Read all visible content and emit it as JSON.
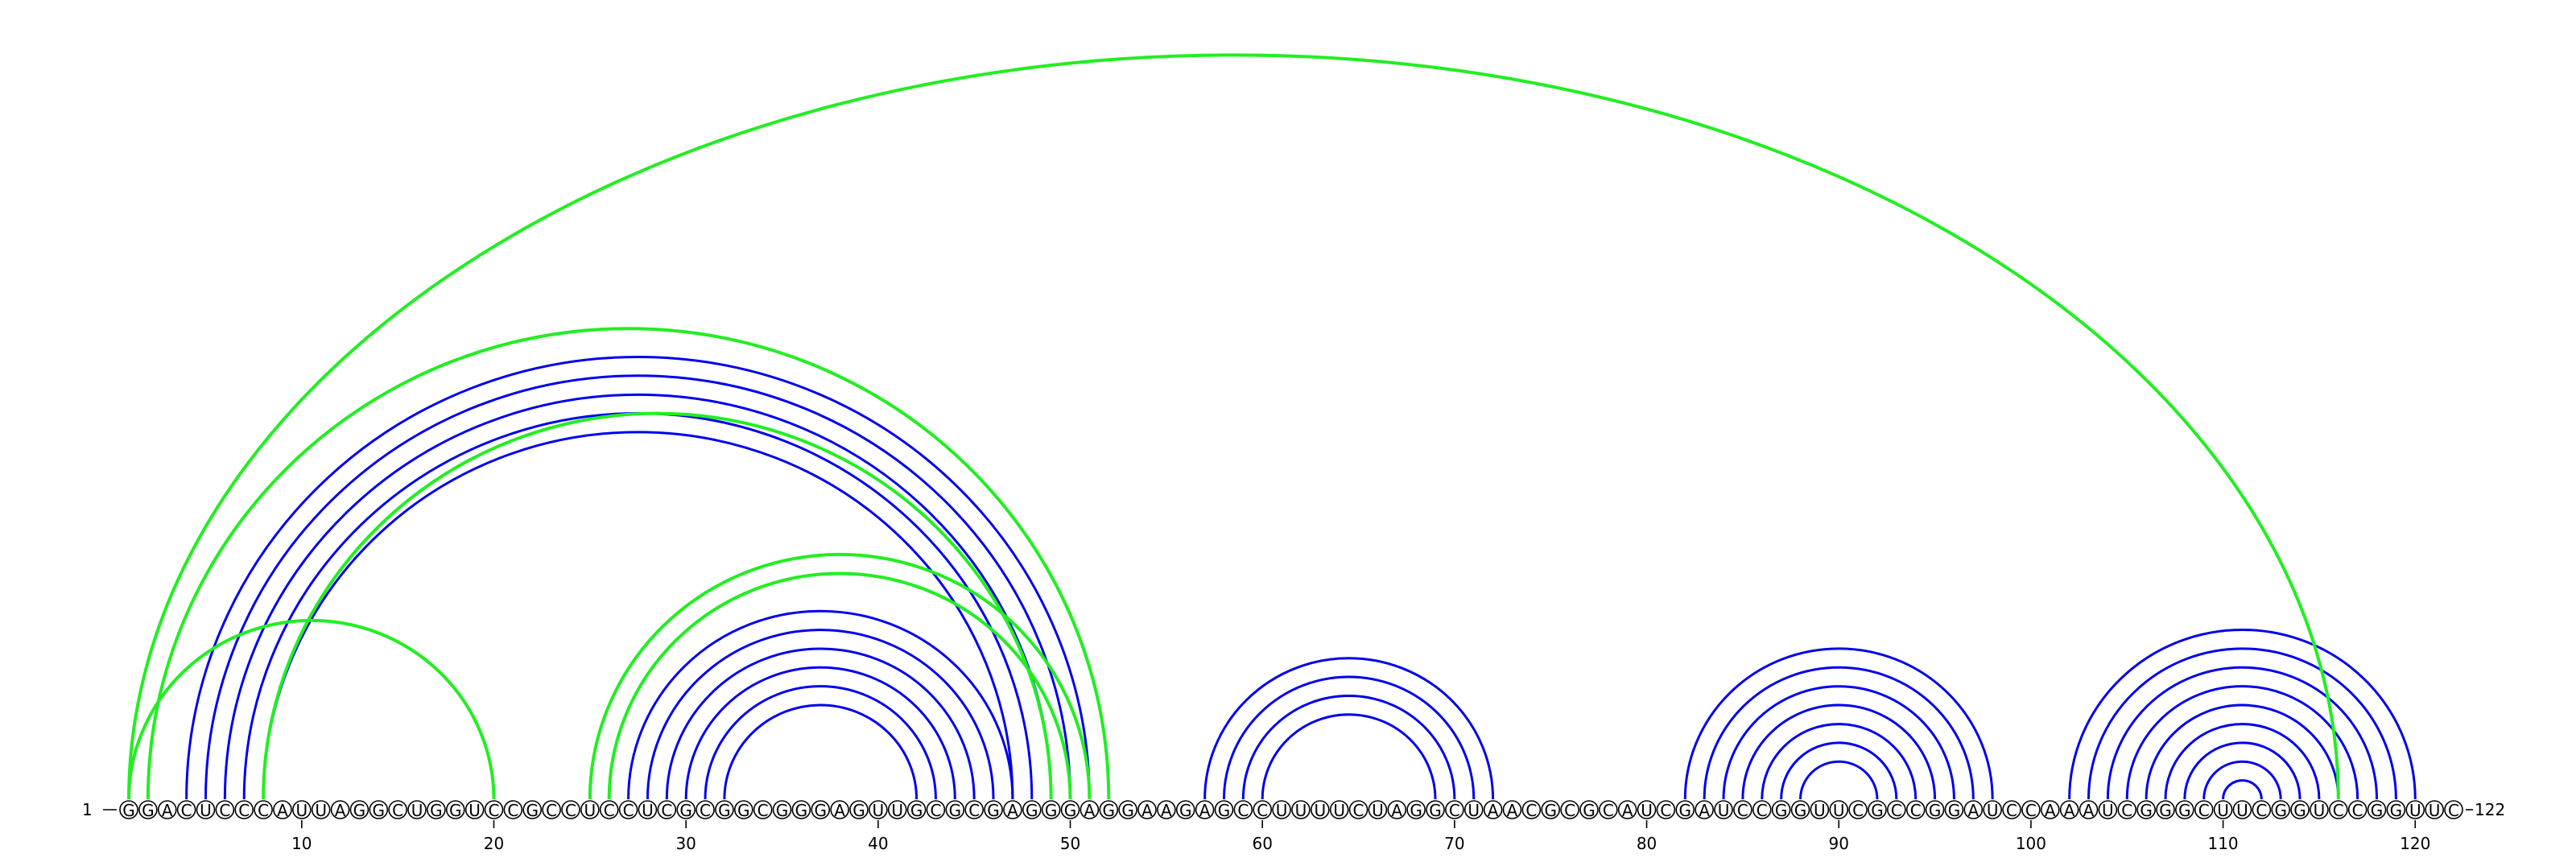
{
  "colors": {
    "blue": "#0000ee",
    "green": "#22ee22",
    "background": "#ffffff",
    "nucleotide_stroke": "#000000"
  },
  "labels": {
    "start": "1",
    "end": "122"
  },
  "chart_data": {
    "type": "arc-diagram",
    "sequence": "GGACUCCCAUUAGGCUGGUCCGCCUCCUCGCGGCGGGAGUUGCGCGAGGGAGGAAGAGCCUUUUCUAGGCUAACGCGCAUCGAUCCGGUUCGCCGGAUCCAAAUCGGGCUUCGGUCCGGUUC",
    "length": 122,
    "tick_positions": [
      10,
      20,
      30,
      40,
      50,
      60,
      70,
      80,
      90,
      100,
      110,
      120
    ],
    "blue_pairs": [
      [
        4,
        51
      ],
      [
        5,
        50
      ],
      [
        6,
        49
      ],
      [
        7,
        48
      ],
      [
        8,
        47
      ],
      [
        27,
        47
      ],
      [
        28,
        46
      ],
      [
        29,
        45
      ],
      [
        30,
        44
      ],
      [
        31,
        43
      ],
      [
        32,
        42
      ],
      [
        57,
        72
      ],
      [
        58,
        71
      ],
      [
        59,
        70
      ],
      [
        60,
        69
      ],
      [
        82,
        98
      ],
      [
        83,
        97
      ],
      [
        84,
        96
      ],
      [
        85,
        95
      ],
      [
        86,
        94
      ],
      [
        87,
        93
      ],
      [
        88,
        92
      ],
      [
        102,
        120
      ],
      [
        103,
        119
      ],
      [
        104,
        118
      ],
      [
        105,
        117
      ],
      [
        106,
        116
      ],
      [
        107,
        115
      ],
      [
        108,
        114
      ],
      [
        109,
        113
      ],
      [
        110,
        112
      ]
    ],
    "green_pairs": [
      [
        1,
        116
      ],
      [
        2,
        52
      ],
      [
        8,
        49
      ],
      [
        1,
        20
      ],
      [
        25,
        51
      ],
      [
        26,
        50
      ]
    ]
  }
}
